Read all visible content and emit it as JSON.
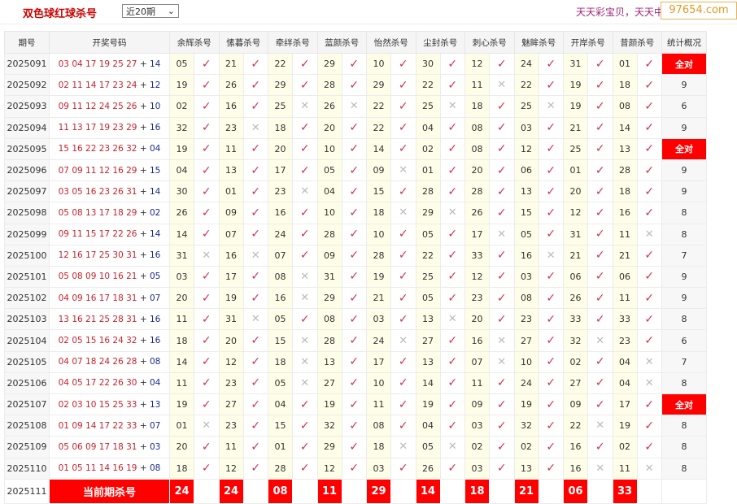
{
  "header": {
    "title": "双色球红球杀号",
    "period_select": "近20期",
    "slogan": "天天彩宝贝，天天中大",
    "watermark": "97654.com"
  },
  "columns": [
    "期号",
    "开奖号码",
    "余辉杀号",
    "愫暮杀号",
    "牵绊杀号",
    "蓝颜杀号",
    "怡然杀号",
    "尘封杀号",
    "刺心杀号",
    "魅眸杀号",
    "开岸杀号",
    "昔颜杀号",
    "统计概况"
  ],
  "rows": [
    {
      "period": "2025091",
      "red": "03 04 17 19 25 27",
      "blue": "14",
      "kills": [
        [
          "05",
          1
        ],
        [
          "21",
          1
        ],
        [
          "22",
          1
        ],
        [
          "29",
          1
        ],
        [
          "10",
          1
        ],
        [
          "30",
          1
        ],
        [
          "12",
          1
        ],
        [
          "24",
          1
        ],
        [
          "31",
          1
        ],
        [
          "01",
          1
        ]
      ],
      "stat": "全对"
    },
    {
      "period": "2025092",
      "red": "02 11 14 17 23 24",
      "blue": "12",
      "kills": [
        [
          "19",
          1
        ],
        [
          "26",
          1
        ],
        [
          "29",
          1
        ],
        [
          "28",
          1
        ],
        [
          "29",
          1
        ],
        [
          "22",
          1
        ],
        [
          "11",
          0
        ],
        [
          "22",
          1
        ],
        [
          "19",
          1
        ],
        [
          "18",
          1
        ]
      ],
      "stat": "9"
    },
    {
      "period": "2025093",
      "red": "09 11 12 24 25 26",
      "blue": "10",
      "kills": [
        [
          "02",
          1
        ],
        [
          "16",
          1
        ],
        [
          "25",
          0
        ],
        [
          "26",
          0
        ],
        [
          "22",
          1
        ],
        [
          "25",
          0
        ],
        [
          "18",
          1
        ],
        [
          "25",
          0
        ],
        [
          "19",
          1
        ],
        [
          "08",
          1
        ]
      ],
      "stat": "6"
    },
    {
      "period": "2025094",
      "red": "11 13 17 19 23 29",
      "blue": "16",
      "kills": [
        [
          "32",
          1
        ],
        [
          "23",
          0
        ],
        [
          "18",
          1
        ],
        [
          "20",
          1
        ],
        [
          "22",
          1
        ],
        [
          "04",
          1
        ],
        [
          "08",
          1
        ],
        [
          "03",
          1
        ],
        [
          "21",
          1
        ],
        [
          "14",
          1
        ]
      ],
      "stat": "9"
    },
    {
      "period": "2025095",
      "red": "15 16 22 23 26 32",
      "blue": "04",
      "kills": [
        [
          "19",
          1
        ],
        [
          "11",
          1
        ],
        [
          "20",
          1
        ],
        [
          "10",
          1
        ],
        [
          "14",
          1
        ],
        [
          "02",
          1
        ],
        [
          "08",
          1
        ],
        [
          "12",
          1
        ],
        [
          "25",
          1
        ],
        [
          "13",
          1
        ]
      ],
      "stat": "全对"
    },
    {
      "period": "2025096",
      "red": "07 09 11 12 16 29",
      "blue": "15",
      "kills": [
        [
          "04",
          1
        ],
        [
          "13",
          1
        ],
        [
          "17",
          1
        ],
        [
          "05",
          1
        ],
        [
          "09",
          0
        ],
        [
          "01",
          1
        ],
        [
          "20",
          1
        ],
        [
          "06",
          1
        ],
        [
          "01",
          1
        ],
        [
          "28",
          1
        ]
      ],
      "stat": "9"
    },
    {
      "period": "2025097",
      "red": "03 05 16 23 26 31",
      "blue": "14",
      "kills": [
        [
          "30",
          1
        ],
        [
          "01",
          1
        ],
        [
          "23",
          0
        ],
        [
          "04",
          1
        ],
        [
          "15",
          1
        ],
        [
          "28",
          1
        ],
        [
          "28",
          1
        ],
        [
          "13",
          1
        ],
        [
          "20",
          1
        ],
        [
          "18",
          1
        ]
      ],
      "stat": "9"
    },
    {
      "period": "2025098",
      "red": "05 08 13 17 18 29",
      "blue": "02",
      "kills": [
        [
          "26",
          1
        ],
        [
          "09",
          1
        ],
        [
          "16",
          1
        ],
        [
          "10",
          1
        ],
        [
          "18",
          0
        ],
        [
          "29",
          0
        ],
        [
          "26",
          1
        ],
        [
          "15",
          1
        ],
        [
          "12",
          1
        ],
        [
          "16",
          1
        ]
      ],
      "stat": "8"
    },
    {
      "period": "2025099",
      "red": "09 11 15 17 22 26",
      "blue": "14",
      "kills": [
        [
          "14",
          1
        ],
        [
          "07",
          1
        ],
        [
          "24",
          1
        ],
        [
          "28",
          1
        ],
        [
          "10",
          1
        ],
        [
          "05",
          1
        ],
        [
          "17",
          0
        ],
        [
          "05",
          1
        ],
        [
          "31",
          1
        ],
        [
          "11",
          0
        ]
      ],
      "stat": "8"
    },
    {
      "period": "2025100",
      "red": "12 16 17 25 30 31",
      "blue": "16",
      "kills": [
        [
          "31",
          0
        ],
        [
          "16",
          0
        ],
        [
          "07",
          1
        ],
        [
          "09",
          1
        ],
        [
          "28",
          1
        ],
        [
          "22",
          1
        ],
        [
          "33",
          1
        ],
        [
          "16",
          0
        ],
        [
          "21",
          1
        ],
        [
          "21",
          1
        ]
      ],
      "stat": "7"
    },
    {
      "period": "2025101",
      "red": "05 08 09 10 16 21",
      "blue": "05",
      "kills": [
        [
          "03",
          1
        ],
        [
          "17",
          1
        ],
        [
          "08",
          0
        ],
        [
          "31",
          1
        ],
        [
          "19",
          1
        ],
        [
          "25",
          1
        ],
        [
          "12",
          1
        ],
        [
          "03",
          1
        ],
        [
          "06",
          1
        ],
        [
          "06",
          1
        ]
      ],
      "stat": "9"
    },
    {
      "period": "2025102",
      "red": "04 09 16 17 18 31",
      "blue": "07",
      "kills": [
        [
          "20",
          1
        ],
        [
          "19",
          1
        ],
        [
          "16",
          0
        ],
        [
          "29",
          1
        ],
        [
          "21",
          1
        ],
        [
          "05",
          1
        ],
        [
          "23",
          1
        ],
        [
          "08",
          1
        ],
        [
          "26",
          1
        ],
        [
          "11",
          1
        ]
      ],
      "stat": "9"
    },
    {
      "period": "2025103",
      "red": "13 16 21 25 28 31",
      "blue": "16",
      "kills": [
        [
          "11",
          1
        ],
        [
          "31",
          0
        ],
        [
          "05",
          1
        ],
        [
          "08",
          1
        ],
        [
          "03",
          1
        ],
        [
          "13",
          0
        ],
        [
          "20",
          1
        ],
        [
          "23",
          1
        ],
        [
          "33",
          1
        ],
        [
          "33",
          1
        ]
      ],
      "stat": "8"
    },
    {
      "period": "2025104",
      "red": "02 05 15 16 24 32",
      "blue": "16",
      "kills": [
        [
          "18",
          1
        ],
        [
          "20",
          1
        ],
        [
          "15",
          0
        ],
        [
          "28",
          1
        ],
        [
          "24",
          0
        ],
        [
          "27",
          1
        ],
        [
          "16",
          0
        ],
        [
          "27",
          1
        ],
        [
          "32",
          0
        ],
        [
          "23",
          1
        ]
      ],
      "stat": "6"
    },
    {
      "period": "2025105",
      "red": "04 07 18 24 26 28",
      "blue": "08",
      "kills": [
        [
          "14",
          1
        ],
        [
          "12",
          1
        ],
        [
          "18",
          0
        ],
        [
          "13",
          1
        ],
        [
          "17",
          1
        ],
        [
          "13",
          1
        ],
        [
          "07",
          0
        ],
        [
          "10",
          1
        ],
        [
          "02",
          1
        ],
        [
          "04",
          0
        ]
      ],
      "stat": "7"
    },
    {
      "period": "2025106",
      "red": "04 05 17 22 26 30",
      "blue": "04",
      "kills": [
        [
          "11",
          1
        ],
        [
          "23",
          1
        ],
        [
          "05",
          0
        ],
        [
          "27",
          1
        ],
        [
          "10",
          1
        ],
        [
          "14",
          1
        ],
        [
          "11",
          1
        ],
        [
          "24",
          1
        ],
        [
          "27",
          1
        ],
        [
          "04",
          0
        ]
      ],
      "stat": "8"
    },
    {
      "period": "2025107",
      "red": "02 03 10 15 25 33",
      "blue": "13",
      "kills": [
        [
          "19",
          1
        ],
        [
          "27",
          1
        ],
        [
          "04",
          1
        ],
        [
          "19",
          1
        ],
        [
          "11",
          1
        ],
        [
          "19",
          1
        ],
        [
          "09",
          1
        ],
        [
          "19",
          1
        ],
        [
          "09",
          1
        ],
        [
          "17",
          1
        ]
      ],
      "stat": "全对"
    },
    {
      "period": "2025108",
      "red": "01 09 14 17 22 33",
      "blue": "07",
      "kills": [
        [
          "01",
          0
        ],
        [
          "23",
          1
        ],
        [
          "15",
          1
        ],
        [
          "32",
          1
        ],
        [
          "08",
          1
        ],
        [
          "04",
          1
        ],
        [
          "03",
          1
        ],
        [
          "32",
          1
        ],
        [
          "22",
          0
        ],
        [
          "19",
          1
        ]
      ],
      "stat": "8"
    },
    {
      "period": "2025109",
      "red": "05 06 09 17 18 31",
      "blue": "03",
      "kills": [
        [
          "20",
          1
        ],
        [
          "11",
          1
        ],
        [
          "01",
          1
        ],
        [
          "29",
          1
        ],
        [
          "18",
          0
        ],
        [
          "05",
          0
        ],
        [
          "02",
          1
        ],
        [
          "02",
          1
        ],
        [
          "16",
          1
        ],
        [
          "02",
          1
        ]
      ],
      "stat": "8"
    },
    {
      "period": "2025110",
      "red": "01 05 11 14 16 19",
      "blue": "08",
      "kills": [
        [
          "18",
          1
        ],
        [
          "12",
          1
        ],
        [
          "28",
          1
        ],
        [
          "12",
          1
        ],
        [
          "03",
          1
        ],
        [
          "26",
          1
        ],
        [
          "03",
          1
        ],
        [
          "13",
          1
        ],
        [
          "16",
          0
        ],
        [
          "11",
          0
        ]
      ],
      "stat": "8"
    }
  ],
  "current": {
    "period": "2025111",
    "label": "当前期杀号",
    "kills": [
      "24",
      "24",
      "08",
      "11",
      "29",
      "14",
      "18",
      "21",
      "06",
      "33"
    ]
  },
  "icons": {
    "hit": "check-icon",
    "miss": "cross-icon",
    "hit_glyph": "✓",
    "miss_glyph": "✕",
    "plus": "+"
  },
  "colors": {
    "hit": "#d0344a",
    "miss": "#bbbbbb",
    "all_correct_bg": "#ff0000",
    "number_cell_bg": "#fefee8",
    "red_ball": "#c8222b",
    "blue_ball": "#1a2a8a"
  }
}
